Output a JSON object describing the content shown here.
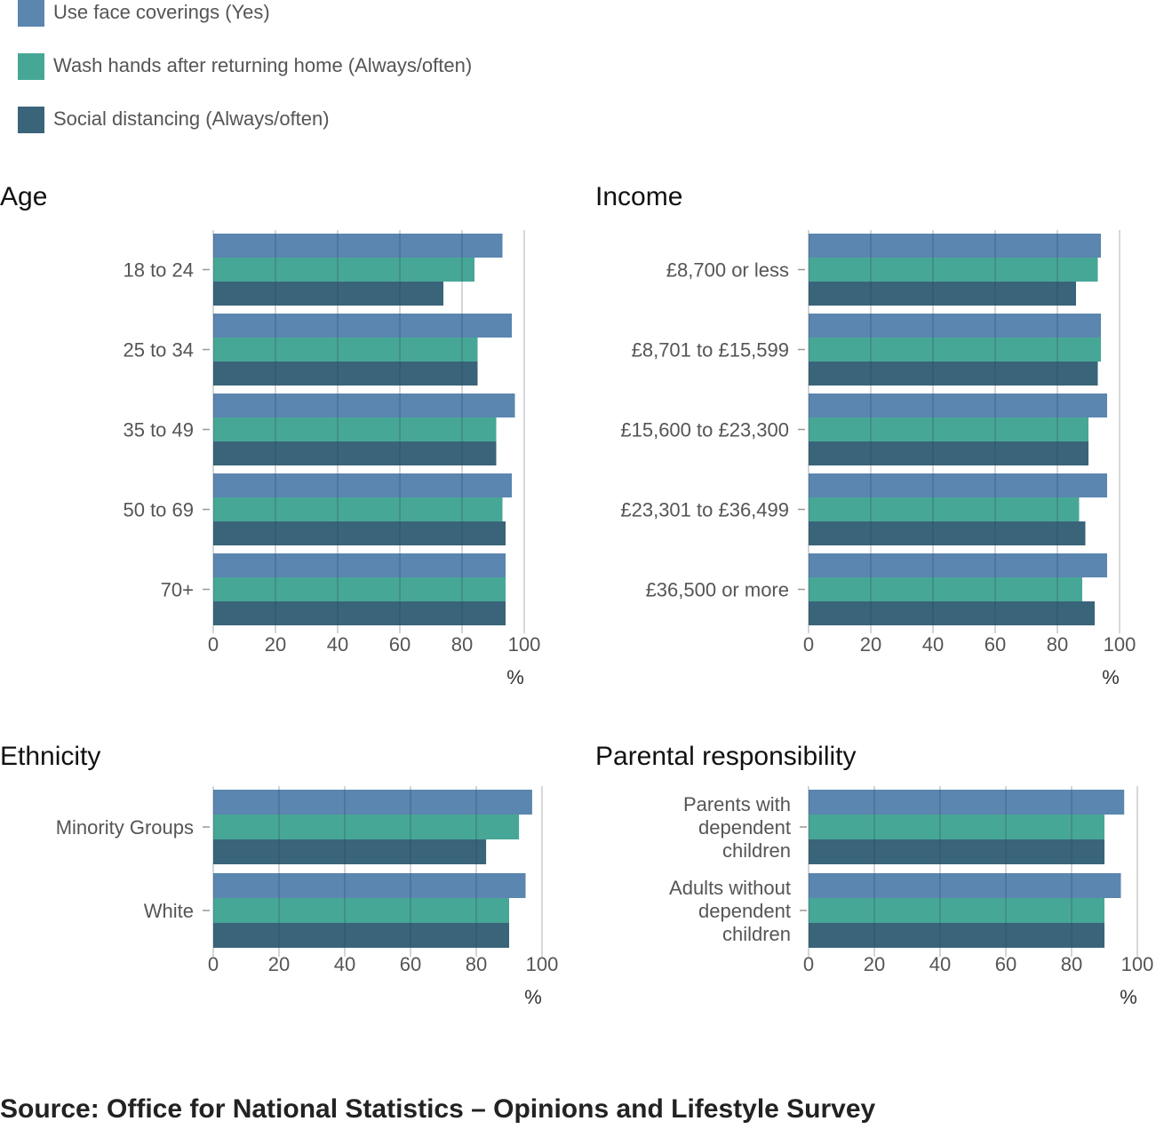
{
  "legend": [
    {
      "label": "Use face coverings (Yes)",
      "color": "#5a86b0"
    },
    {
      "label": "Wash hands after returning home (Always/often)",
      "color": "#47a796"
    },
    {
      "label": "Social distancing (Always/often)",
      "color": "#3a6479"
    }
  ],
  "source": "Source: Office for National Statistics – Opinions and Lifestyle Survey",
  "chart_data": [
    {
      "type": "bar",
      "orientation": "horizontal",
      "title": "Age",
      "categories": [
        "18 to 24",
        "25 to 34",
        "35 to 49",
        "50 to 69",
        "70+"
      ],
      "series": [
        {
          "name": "Use face coverings (Yes)",
          "values": [
            93,
            96,
            97,
            96,
            94
          ]
        },
        {
          "name": "Wash hands after returning home (Always/often)",
          "values": [
            84,
            85,
            91,
            93,
            94
          ]
        },
        {
          "name": "Social distancing (Always/often)",
          "values": [
            74,
            85,
            91,
            94,
            94
          ]
        }
      ],
      "xlim": [
        0,
        100
      ],
      "xticks": [
        0,
        20,
        40,
        60,
        80,
        100
      ],
      "xlabel": "%"
    },
    {
      "type": "bar",
      "orientation": "horizontal",
      "title": "Income",
      "categories": [
        "£8,700 or less",
        "£8,701 to £15,599",
        "£15,600 to £23,300",
        "£23,301 to £36,499",
        "£36,500 or more"
      ],
      "series": [
        {
          "name": "Use face coverings (Yes)",
          "values": [
            94,
            94,
            96,
            96,
            96
          ]
        },
        {
          "name": "Wash hands after returning home (Always/often)",
          "values": [
            93,
            94,
            90,
            87,
            88
          ]
        },
        {
          "name": "Social distancing (Always/often)",
          "values": [
            86,
            93,
            90,
            89,
            92
          ]
        }
      ],
      "xlim": [
        0,
        100
      ],
      "xticks": [
        0,
        20,
        40,
        60,
        80,
        100
      ],
      "xlabel": "%"
    },
    {
      "type": "bar",
      "orientation": "horizontal",
      "title": "Ethnicity",
      "categories": [
        "Minority Groups",
        "White"
      ],
      "series": [
        {
          "name": "Use face coverings (Yes)",
          "values": [
            97,
            95
          ]
        },
        {
          "name": "Wash hands after returning home (Always/often)",
          "values": [
            93,
            90
          ]
        },
        {
          "name": "Social distancing (Always/often)",
          "values": [
            83,
            90
          ]
        }
      ],
      "xlim": [
        0,
        100
      ],
      "xticks": [
        0,
        20,
        40,
        60,
        80,
        100
      ],
      "xlabel": "%"
    },
    {
      "type": "bar",
      "orientation": "horizontal",
      "title": "Parental responsibility",
      "categories": [
        "Parents with dependent children",
        "Adults without dependent children"
      ],
      "category_lines": [
        [
          "Parents with",
          "dependent",
          "children"
        ],
        [
          "Adults without",
          "dependent",
          "children"
        ]
      ],
      "series": [
        {
          "name": "Use face coverings (Yes)",
          "values": [
            96,
            95
          ]
        },
        {
          "name": "Wash hands after returning home (Always/often)",
          "values": [
            90,
            90
          ]
        },
        {
          "name": "Social distancing (Always/often)",
          "values": [
            90,
            90
          ]
        }
      ],
      "xlim": [
        0,
        100
      ],
      "xticks": [
        0,
        20,
        40,
        60,
        80,
        100
      ],
      "xlabel": "%"
    }
  ]
}
